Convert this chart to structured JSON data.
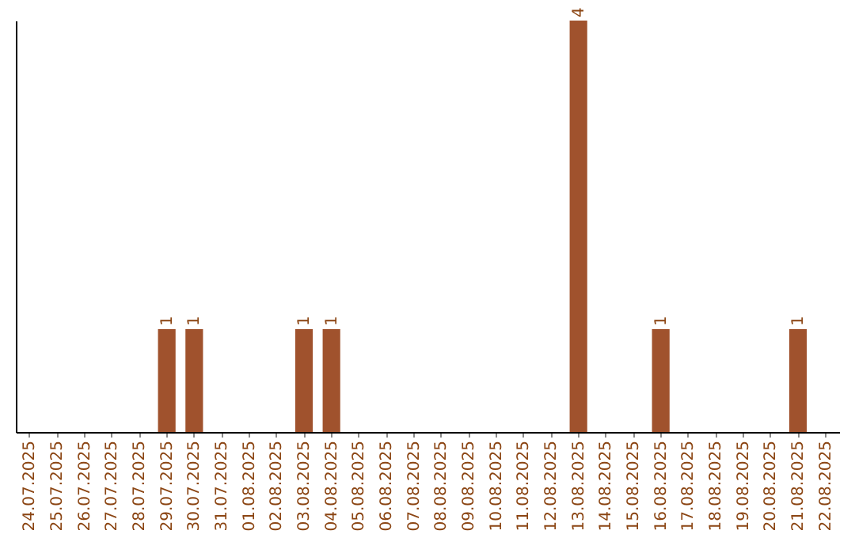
{
  "chart_data": {
    "type": "bar",
    "categories": [
      "24.07.2025",
      "25.07.2025",
      "26.07.2025",
      "27.07.2025",
      "28.07.2025",
      "29.07.2025",
      "30.07.2025",
      "31.07.2025",
      "01.08.2025",
      "02.08.2025",
      "03.08.2025",
      "04.08.2025",
      "05.08.2025",
      "06.08.2025",
      "07.08.2025",
      "08.08.2025",
      "09.08.2025",
      "10.08.2025",
      "11.08.2025",
      "12.08.2025",
      "13.08.2025",
      "14.08.2025",
      "15.08.2025",
      "16.08.2025",
      "17.08.2025",
      "18.08.2025",
      "19.08.2025",
      "20.08.2025",
      "21.08.2025",
      "22.08.2025"
    ],
    "values": [
      0,
      0,
      0,
      0,
      0,
      1,
      1,
      0,
      0,
      0,
      1,
      1,
      0,
      0,
      0,
      0,
      0,
      0,
      0,
      0,
      4,
      0,
      0,
      1,
      0,
      0,
      0,
      0,
      1,
      0
    ],
    "value_labels": [
      null,
      null,
      null,
      null,
      null,
      "1",
      "1",
      null,
      null,
      null,
      "1",
      "1",
      null,
      null,
      null,
      null,
      null,
      null,
      null,
      null,
      "4",
      null,
      null,
      "1",
      null,
      null,
      null,
      null,
      "1",
      null
    ],
    "color": "#a0522d",
    "tick_labels": "x",
    "grid": false
  }
}
